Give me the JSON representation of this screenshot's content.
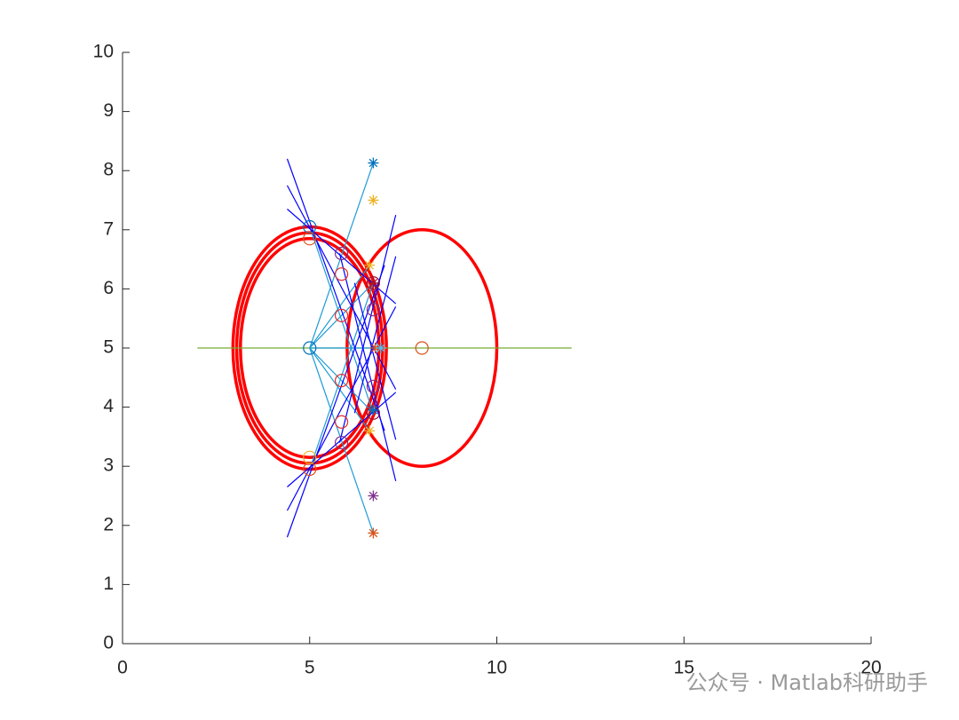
{
  "chart_data": {
    "type": "line",
    "xlim": [
      0,
      20
    ],
    "ylim": [
      0,
      10
    ],
    "xticks": [
      0,
      5,
      10,
      15,
      20
    ],
    "yticks": [
      0,
      1,
      2,
      3,
      4,
      5,
      6,
      7,
      8,
      9,
      10
    ],
    "watermark": "公众号 · Matlab科研助手",
    "circles": [
      {
        "cx": 5,
        "cy": 5,
        "r": 2.05,
        "color": "#ff0000"
      },
      {
        "cx": 5,
        "cy": 5,
        "r": 1.95,
        "color": "#ff0000"
      },
      {
        "cx": 5,
        "cy": 5,
        "r": 1.85,
        "color": "#ff0000"
      },
      {
        "cx": 8,
        "cy": 5,
        "r": 2,
        "color": "#ff0000"
      }
    ],
    "series": [
      {
        "style": "line",
        "color": "#77ac30",
        "x": [
          2,
          12
        ],
        "y": [
          5,
          5
        ]
      },
      {
        "style": "line",
        "color": "#1f9bd6",
        "x": [
          5,
          6.7
        ],
        "y": [
          5,
          8.13
        ]
      },
      {
        "style": "line",
        "color": "#1f9bd6",
        "x": [
          5,
          6.6
        ],
        "y": [
          5,
          6.4
        ]
      },
      {
        "style": "line",
        "color": "#1f9bd6",
        "x": [
          5,
          6.7
        ],
        "y": [
          5,
          6.1
        ]
      },
      {
        "style": "line",
        "color": "#1f9bd6",
        "x": [
          5,
          6.9
        ],
        "y": [
          5,
          5
        ]
      },
      {
        "style": "line",
        "color": "#1f9bd6",
        "x": [
          5,
          6.7
        ],
        "y": [
          5,
          3.9
        ]
      },
      {
        "style": "line",
        "color": "#1f9bd6",
        "x": [
          5,
          6.6
        ],
        "y": [
          5,
          3.6
        ]
      },
      {
        "style": "line",
        "color": "#1f9bd6",
        "x": [
          5,
          6.7
        ],
        "y": [
          5,
          1.87
        ]
      },
      {
        "style": "line",
        "color": "#1f9bd6",
        "x": [
          5,
          6.7
        ],
        "y": [
          7.05,
          3.9
        ]
      },
      {
        "style": "line",
        "color": "#1f9bd6",
        "x": [
          5,
          6.7
        ],
        "y": [
          2.95,
          6.1
        ]
      },
      {
        "style": "line",
        "color": "#0000ff",
        "x": [
          4.4,
          7.0
        ],
        "y": [
          8.2,
          3.6
        ]
      },
      {
        "style": "line",
        "color": "#0000ff",
        "x": [
          4.4,
          7.3
        ],
        "y": [
          7.75,
          4.3
        ]
      },
      {
        "style": "line",
        "color": "#0000ff",
        "x": [
          4.4,
          7.3
        ],
        "y": [
          7.35,
          5.75
        ]
      },
      {
        "style": "line",
        "color": "#0000ff",
        "x": [
          4.4,
          7.0
        ],
        "y": [
          1.8,
          6.4
        ]
      },
      {
        "style": "line",
        "color": "#0000ff",
        "x": [
          4.4,
          7.3
        ],
        "y": [
          2.25,
          5.7
        ]
      },
      {
        "style": "line",
        "color": "#0000ff",
        "x": [
          4.4,
          7.3
        ],
        "y": [
          2.65,
          4.25
        ]
      },
      {
        "style": "line",
        "color": "#0000ff",
        "x": [
          7.3,
          5.8
        ],
        "y": [
          7.25,
          3.4
        ]
      },
      {
        "style": "line",
        "color": "#0000ff",
        "x": [
          7.3,
          5.8
        ],
        "y": [
          2.75,
          6.6
        ]
      },
      {
        "style": "line",
        "color": "#0000ff",
        "x": [
          7.3,
          6.2
        ],
        "y": [
          6.55,
          3.9
        ]
      },
      {
        "style": "line",
        "color": "#0000ff",
        "x": [
          7.3,
          6.2
        ],
        "y": [
          3.45,
          6.1
        ]
      },
      {
        "style": "circle",
        "color": "#0072bd",
        "x": [
          5,
          5
        ],
        "y": [
          5,
          7.05
        ]
      },
      {
        "style": "circle",
        "color": "#d95319",
        "x": [
          8,
          5,
          5
        ],
        "y": [
          5,
          6.85,
          2.95
        ]
      },
      {
        "style": "circle",
        "color": "#edb120",
        "x": [
          5
        ],
        "y": [
          3.15
        ]
      },
      {
        "style": "circle",
        "color": "#e0302f",
        "x": [
          5.85,
          5.85,
          5.85,
          5.85
        ],
        "y": [
          6.25,
          5.55,
          4.45,
          3.75
        ]
      },
      {
        "style": "circle",
        "color": "#7e2f8e",
        "x": [
          5.85,
          5.85,
          6.7,
          6.7
        ],
        "y": [
          6.6,
          3.4,
          5.65,
          4.35
        ]
      },
      {
        "style": "circle",
        "color": "#a2142f",
        "x": [
          6.7,
          6.7
        ],
        "y": [
          6.1,
          3.9
        ]
      },
      {
        "style": "star",
        "color": "#0072bd",
        "x": [
          6.7,
          6.7
        ],
        "y": [
          8.13,
          3.95
        ]
      },
      {
        "style": "star",
        "color": "#edb120",
        "x": [
          6.7,
          6.6,
          6.6
        ],
        "y": [
          7.5,
          6.4,
          3.6
        ]
      },
      {
        "style": "star",
        "color": "#7e2f8e",
        "x": [
          6.7
        ],
        "y": [
          2.5
        ]
      },
      {
        "style": "star",
        "color": "#d95319",
        "x": [
          6.7,
          6.75
        ],
        "y": [
          1.87,
          5
        ]
      },
      {
        "style": "star",
        "color": "#4dbeee",
        "x": [
          6.9
        ],
        "y": [
          5
        ]
      },
      {
        "style": "star",
        "color": "#a2142f",
        "x": [
          6.7
        ],
        "y": [
          6.1
        ]
      }
    ]
  }
}
